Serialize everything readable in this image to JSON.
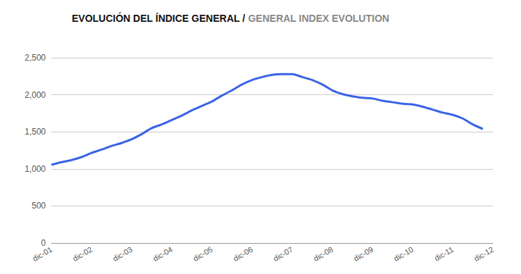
{
  "chart_data": {
    "type": "line",
    "title": "EVOLUCIÓN DEL ÍNDICE GENERAL / GENERAL INDEX EVOLUTION",
    "categories": [
      "dic-01",
      null,
      null,
      null,
      "dic-02",
      null,
      null,
      null,
      "dic-03",
      null,
      null,
      null,
      "dic-04",
      null,
      null,
      null,
      "dic-05",
      null,
      null,
      null,
      "dic-06",
      null,
      null,
      null,
      "dic-07",
      null,
      null,
      null,
      "dic-08",
      null,
      null,
      null,
      "dic-09",
      null,
      null,
      null,
      "dic-10",
      null,
      null,
      null,
      "dic-11",
      null,
      null,
      null,
      "dic-12"
    ],
    "values": [
      1055,
      1090,
      1120,
      1160,
      1215,
      1260,
      1310,
      1350,
      1400,
      1470,
      1550,
      1600,
      1660,
      1720,
      1790,
      1850,
      1910,
      1990,
      2060,
      2140,
      2200,
      2240,
      2270,
      2280,
      2280,
      2240,
      2200,
      2140,
      2060,
      2010,
      1980,
      1960,
      1950,
      1920,
      1900,
      1880,
      1870,
      1840,
      1800,
      1760,
      1730,
      1680,
      1600,
      1540,
      null
    ],
    "color": "#3a62e6",
    "ylim": [
      0,
      2500
    ],
    "yticks": [
      0,
      500,
      1000,
      1500,
      2000,
      2500
    ],
    "grid": true
  }
}
